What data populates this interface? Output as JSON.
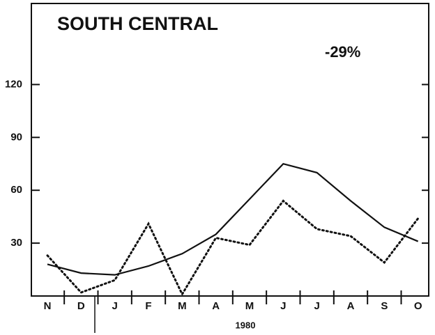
{
  "chart_data": {
    "type": "line",
    "title": "SOUTH CENTRAL",
    "annotation": "-29%",
    "xlabel": "1980",
    "categories": [
      "N",
      "D",
      "J",
      "F",
      "M",
      "A",
      "M",
      "J",
      "J",
      "A",
      "S",
      "O"
    ],
    "series": [
      {
        "color": "#111111",
        "style": "solid",
        "values": [
          18,
          13,
          12,
          17,
          24,
          35,
          55,
          75,
          70,
          54,
          39,
          31
        ]
      },
      {
        "color": "#111111",
        "style": "dotted",
        "values": [
          23,
          2,
          9,
          41,
          1,
          33,
          29,
          54,
          38,
          34,
          19,
          44
        ]
      }
    ],
    "ylim": [
      0,
      166
    ],
    "yticks": [
      30,
      60,
      90,
      120
    ]
  }
}
